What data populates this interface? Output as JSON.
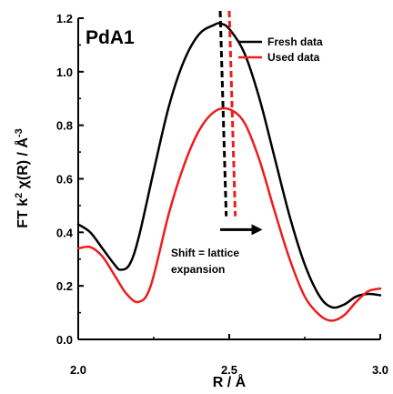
{
  "chart_data": {
    "type": "line",
    "panel_label": "PdA1",
    "xlabel": "R / Å",
    "ylabel_parts": {
      "base": "FT k",
      "sup": "2",
      "rest": " χ(R) / Å",
      "unit_sup": "-3"
    },
    "xlim": [
      2.0,
      3.0
    ],
    "ylim": [
      0.0,
      1.2
    ],
    "x_ticks": [
      2.0,
      2.5,
      3.0
    ],
    "x_tick_labels": [
      "2.0",
      "2.5",
      "3.0"
    ],
    "y_ticks": [
      0.0,
      0.2,
      0.4,
      0.6,
      0.8,
      1.0,
      1.2
    ],
    "y_tick_labels": [
      "0.0",
      "0.2",
      "0.4",
      "0.6",
      "0.8",
      "1.0",
      "1.2"
    ],
    "grid": false,
    "legend_position": "top-right",
    "series": [
      {
        "name": "Fresh data",
        "color": "#000000",
        "x": [
          2.0,
          2.04,
          2.08,
          2.12,
          2.14,
          2.17,
          2.2,
          2.25,
          2.3,
          2.35,
          2.4,
          2.45,
          2.47,
          2.5,
          2.55,
          2.6,
          2.65,
          2.7,
          2.75,
          2.8,
          2.84,
          2.88,
          2.92,
          2.96,
          3.0
        ],
        "y": [
          0.43,
          0.4,
          0.34,
          0.28,
          0.26,
          0.28,
          0.38,
          0.63,
          0.87,
          1.04,
          1.14,
          1.175,
          1.18,
          1.16,
          1.07,
          0.9,
          0.68,
          0.46,
          0.28,
          0.16,
          0.12,
          0.13,
          0.16,
          0.17,
          0.165
        ]
      },
      {
        "name": "Used data",
        "color": "#ee1c1c",
        "x": [
          2.0,
          2.04,
          2.08,
          2.12,
          2.16,
          2.2,
          2.24,
          2.3,
          2.35,
          2.4,
          2.45,
          2.5,
          2.55,
          2.6,
          2.65,
          2.7,
          2.75,
          2.8,
          2.84,
          2.88,
          2.92,
          2.96,
          3.0
        ],
        "y": [
          0.34,
          0.345,
          0.31,
          0.24,
          0.17,
          0.14,
          0.2,
          0.47,
          0.65,
          0.78,
          0.85,
          0.86,
          0.81,
          0.67,
          0.48,
          0.3,
          0.16,
          0.09,
          0.07,
          0.09,
          0.14,
          0.18,
          0.19
        ]
      }
    ],
    "peak_markers": [
      {
        "series": "Fresh data",
        "color": "#000000",
        "x_top": 2.47,
        "x_bottom": 2.49
      },
      {
        "series": "Used data",
        "color": "#ee1c1c",
        "x_top": 2.5,
        "x_bottom": 2.52
      }
    ],
    "annotation": {
      "lines": [
        "Shift = lattice",
        "expansion"
      ],
      "arrow_from": 2.47,
      "arrow_to": 2.61,
      "arrow_y": 0.41
    }
  }
}
